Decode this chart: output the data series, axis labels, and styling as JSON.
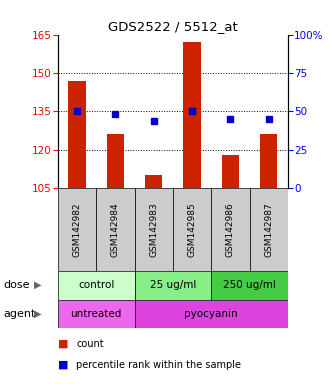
{
  "title": "GDS2522 / 5512_at",
  "samples": [
    "GSM142982",
    "GSM142984",
    "GSM142983",
    "GSM142985",
    "GSM142986",
    "GSM142987"
  ],
  "count_values": [
    147,
    126,
    110,
    162,
    118,
    126
  ],
  "percentile_values": [
    50,
    48,
    44,
    50,
    45,
    45
  ],
  "left_ylim": [
    105,
    165
  ],
  "left_yticks": [
    105,
    120,
    135,
    150,
    165
  ],
  "right_ylim": [
    0,
    100
  ],
  "right_yticks": [
    0,
    25,
    50,
    75,
    100
  ],
  "right_yticklabels": [
    "0",
    "25",
    "50",
    "75",
    "100%"
  ],
  "bar_color": "#cc2200",
  "dot_color": "#0000cc",
  "gridlines": [
    120,
    135,
    150
  ],
  "dose_groups": [
    {
      "label": "control",
      "span": [
        0,
        2
      ],
      "color": "#ccffcc"
    },
    {
      "label": "25 ug/ml",
      "span": [
        2,
        4
      ],
      "color": "#88ee88"
    },
    {
      "label": "250 ug/ml",
      "span": [
        4,
        6
      ],
      "color": "#44cc44"
    }
  ],
  "agent_groups": [
    {
      "label": "untreated",
      "span": [
        0,
        2
      ],
      "color": "#ee66ee"
    },
    {
      "label": "pyocyanin",
      "span": [
        2,
        6
      ],
      "color": "#dd44dd"
    }
  ],
  "dose_label": "dose",
  "agent_label": "agent",
  "legend_count_label": "count",
  "legend_percentile_label": "percentile rank within the sample",
  "plot_bg_color": "#ffffff",
  "sample_box_color": "#cccccc"
}
